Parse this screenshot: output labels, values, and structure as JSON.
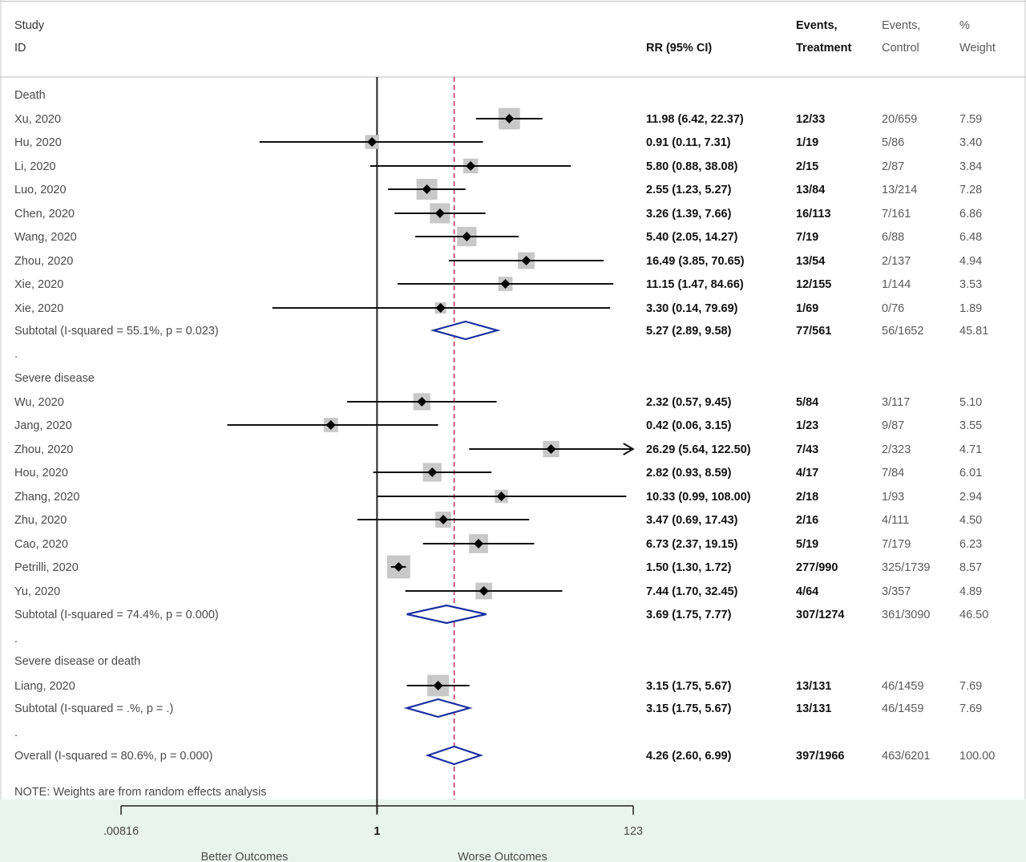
{
  "headers": {
    "study": "Study",
    "id": "ID",
    "rr": "RR (95% CI)",
    "events_treatment_1": "Events,",
    "events_treatment_2": "Treatment",
    "events_control_1": "Events,",
    "events_control_2": "Control",
    "weight_1": "%",
    "weight_2": "Weight"
  },
  "note": "NOTE: Weights are from random effects analysis",
  "xaxis": {
    "ticks": [
      ".00816",
      "1",
      "123"
    ],
    "tick_values": [
      0.00816,
      1,
      123
    ],
    "left_label": "Better Outcomes",
    "right_label": "Worse Outcomes",
    "scale": "log"
  },
  "chart_data": {
    "type": "forest",
    "scale": "log",
    "null_line": 1,
    "overall_line": 4.26,
    "xlim": [
      0.00816,
      123
    ],
    "rows": [
      {
        "kind": "group",
        "label": "Death"
      },
      {
        "kind": "study",
        "label": "Xu, 2020",
        "rr": 11.98,
        "lo": 6.42,
        "hi": 22.37,
        "ci_text": "11.98 (6.42, 22.37)",
        "ev_t": "12/33",
        "ev_c": "20/659",
        "weight": "7.59"
      },
      {
        "kind": "study",
        "label": "Hu, 2020",
        "rr": 0.91,
        "lo": 0.11,
        "hi": 7.31,
        "ci_text": "0.91 (0.11, 7.31)",
        "ev_t": "1/19",
        "ev_c": "5/86",
        "weight": "3.40"
      },
      {
        "kind": "study",
        "label": "Li, 2020",
        "rr": 5.8,
        "lo": 0.88,
        "hi": 38.08,
        "ci_text": "5.80 (0.88, 38.08)",
        "ev_t": "2/15",
        "ev_c": "2/87",
        "weight": "3.84"
      },
      {
        "kind": "study",
        "label": "Luo, 2020",
        "rr": 2.55,
        "lo": 1.23,
        "hi": 5.27,
        "ci_text": "2.55 (1.23, 5.27)",
        "ev_t": "13/84",
        "ev_c": "13/214",
        "weight": "7.28"
      },
      {
        "kind": "study",
        "label": "Chen, 2020",
        "rr": 3.26,
        "lo": 1.39,
        "hi": 7.66,
        "ci_text": "3.26 (1.39, 7.66)",
        "ev_t": "16/113",
        "ev_c": "7/161",
        "weight": "6.86"
      },
      {
        "kind": "study",
        "label": "Wang, 2020",
        "rr": 5.4,
        "lo": 2.05,
        "hi": 14.27,
        "ci_text": "5.40 (2.05, 14.27)",
        "ev_t": "7/19",
        "ev_c": "6/88",
        "weight": "6.48"
      },
      {
        "kind": "study",
        "label": "Zhou, 2020",
        "rr": 16.49,
        "lo": 3.85,
        "hi": 70.65,
        "ci_text": "16.49 (3.85, 70.65)",
        "ev_t": "13/54",
        "ev_c": "2/137",
        "weight": "4.94"
      },
      {
        "kind": "study",
        "label": "Xie, 2020",
        "rr": 11.15,
        "lo": 1.47,
        "hi": 84.66,
        "ci_text": "11.15 (1.47, 84.66)",
        "ev_t": "12/155",
        "ev_c": "1/144",
        "weight": "3.53"
      },
      {
        "kind": "study",
        "label": "Xie, 2020",
        "rr": 3.3,
        "lo": 0.14,
        "hi": 79.69,
        "ci_text": "3.30 (0.14, 79.69)",
        "ev_t": "1/69",
        "ev_c": "0/76",
        "weight": "1.89"
      },
      {
        "kind": "subtotal",
        "label": "Subtotal  (I-squared = 55.1%, p = 0.023)",
        "rr": 5.27,
        "lo": 2.89,
        "hi": 9.58,
        "ci_text": "5.27 (2.89, 9.58)",
        "ev_t": "77/561",
        "ev_c": "56/1652",
        "weight": "45.81"
      },
      {
        "kind": "dot",
        "label": "."
      },
      {
        "kind": "group",
        "label": "Severe disease"
      },
      {
        "kind": "study",
        "label": "Wu, 2020",
        "rr": 2.32,
        "lo": 0.57,
        "hi": 9.45,
        "ci_text": "2.32 (0.57, 9.45)",
        "ev_t": "5/84",
        "ev_c": "3/117",
        "weight": "5.10"
      },
      {
        "kind": "study",
        "label": "Jang, 2020",
        "rr": 0.42,
        "lo": 0.06,
        "hi": 3.15,
        "ci_text": "0.42 (0.06, 3.15)",
        "ev_t": "1/23",
        "ev_c": "9/87",
        "weight": "3.55"
      },
      {
        "kind": "study",
        "label": "Zhou, 2020",
        "rr": 26.29,
        "lo": 5.64,
        "hi": 122.5,
        "ci_text": "26.29 (5.64, 122.50)",
        "ev_t": "7/43",
        "ev_c": "2/323",
        "weight": "4.71",
        "arrow": true
      },
      {
        "kind": "study",
        "label": "Hou, 2020",
        "rr": 2.82,
        "lo": 0.93,
        "hi": 8.59,
        "ci_text": "2.82 (0.93, 8.59)",
        "ev_t": "4/17",
        "ev_c": "7/84",
        "weight": "6.01"
      },
      {
        "kind": "study",
        "label": "Zhang, 2020",
        "rr": 10.33,
        "lo": 0.99,
        "hi": 108.0,
        "ci_text": "10.33 (0.99, 108.00)",
        "ev_t": "2/18",
        "ev_c": "1/93",
        "weight": "2.94"
      },
      {
        "kind": "study",
        "label": "Zhu, 2020",
        "rr": 3.47,
        "lo": 0.69,
        "hi": 17.43,
        "ci_text": "3.47 (0.69, 17.43)",
        "ev_t": "2/16",
        "ev_c": "4/111",
        "weight": "4.50"
      },
      {
        "kind": "study",
        "label": "Cao, 2020",
        "rr": 6.73,
        "lo": 2.37,
        "hi": 19.15,
        "ci_text": "6.73 (2.37, 19.15)",
        "ev_t": "5/19",
        "ev_c": "7/179",
        "weight": "6.23"
      },
      {
        "kind": "study",
        "label": "Petrilli, 2020",
        "rr": 1.5,
        "lo": 1.3,
        "hi": 1.72,
        "ci_text": "1.50 (1.30, 1.72)",
        "ev_t": "277/990",
        "ev_c": "325/1739",
        "weight": "8.57"
      },
      {
        "kind": "study",
        "label": "Yu, 2020",
        "rr": 7.44,
        "lo": 1.7,
        "hi": 32.45,
        "ci_text": "7.44 (1.70, 32.45)",
        "ev_t": "4/64",
        "ev_c": "3/357",
        "weight": "4.89"
      },
      {
        "kind": "subtotal",
        "label": "Subtotal  (I-squared = 74.4%, p = 0.000)",
        "rr": 3.69,
        "lo": 1.75,
        "hi": 7.77,
        "ci_text": "3.69 (1.75, 7.77)",
        "ev_t": "307/1274",
        "ev_c": "361/3090",
        "weight": "46.50"
      },
      {
        "kind": "dot",
        "label": "."
      },
      {
        "kind": "group",
        "label": "Severe disease or death"
      },
      {
        "kind": "study",
        "label": "Liang, 2020",
        "rr": 3.15,
        "lo": 1.75,
        "hi": 5.67,
        "ci_text": "3.15 (1.75, 5.67)",
        "ev_t": "13/131",
        "ev_c": "46/1459",
        "weight": "7.69"
      },
      {
        "kind": "subtotal",
        "label": "Subtotal  (I-squared = .%, p = .)",
        "rr": 3.15,
        "lo": 1.75,
        "hi": 5.67,
        "ci_text": "3.15 (1.75, 5.67)",
        "ev_t": "13/131",
        "ev_c": "46/1459",
        "weight": "7.69"
      },
      {
        "kind": "dot",
        "label": "."
      },
      {
        "kind": "overall",
        "label": "Overall  (I-squared = 80.6%, p = 0.000)",
        "rr": 4.26,
        "lo": 2.6,
        "hi": 6.99,
        "ci_text": "4.26 (2.60, 6.99)",
        "ev_t": "397/1966",
        "ev_c": "463/6201",
        "weight": "100.00"
      }
    ]
  },
  "colors": {
    "footer_bg": "#e9f4ee",
    "diamond": "#1a2fa0",
    "dashed_line": "#b03060",
    "weight_box": "#c8c8c8"
  }
}
